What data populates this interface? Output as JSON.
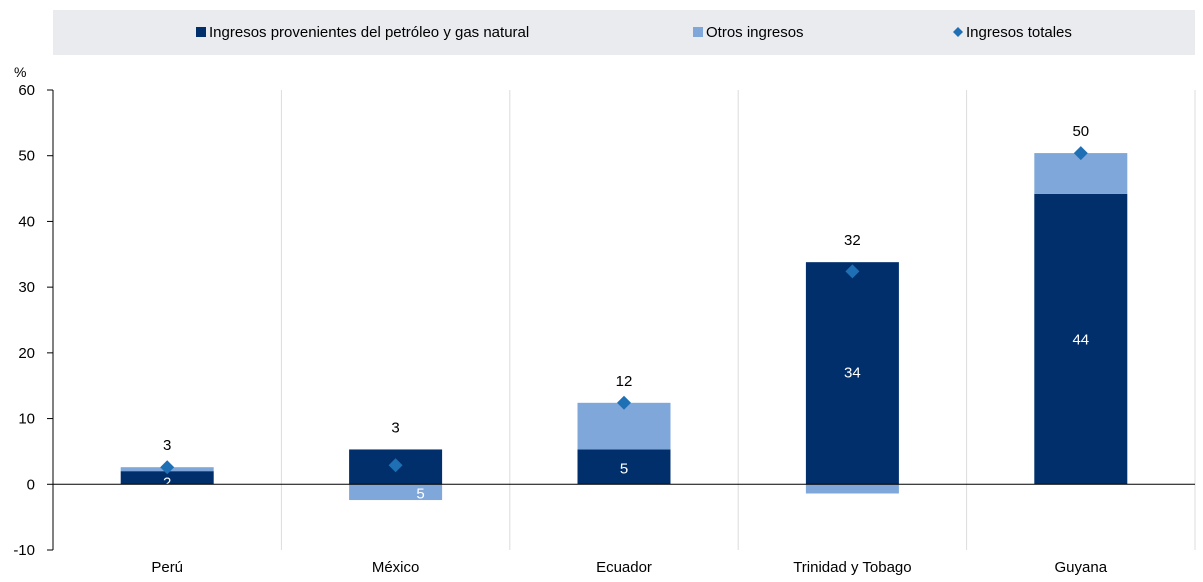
{
  "chart_data": {
    "type": "bar",
    "stacked": true,
    "categories": [
      "Perú",
      "México",
      "Ecuador",
      "Trinidad y Tobago",
      "Guyana"
    ],
    "series": [
      {
        "name": "Ingresos provenientes del petróleo y gas natural",
        "kind": "bar",
        "color": "#002f6c",
        "values": [
          2,
          5.3,
          5.3,
          33.8,
          44.2
        ],
        "labels": [
          "2",
          "5",
          "5",
          "34",
          "44"
        ]
      },
      {
        "name": "Otros ingresos",
        "kind": "bar",
        "color": "#7fa7d9",
        "values": [
          0.6,
          -2.4,
          7.1,
          -1.4,
          6.2
        ],
        "labels": [
          "",
          "",
          "",
          "",
          ""
        ]
      },
      {
        "name": "Ingresos totales",
        "kind": "marker",
        "color": "#1f6fb5",
        "values": [
          2.6,
          2.9,
          12.4,
          32.4,
          50.4
        ],
        "labels": [
          "3",
          "3",
          "12",
          "32",
          "50"
        ]
      }
    ],
    "ylabel": "%",
    "ylim": [
      -10,
      60
    ],
    "yticks": [
      -10,
      0,
      10,
      20,
      30,
      40,
      50,
      60
    ],
    "grid": true,
    "legend_position": "top"
  }
}
